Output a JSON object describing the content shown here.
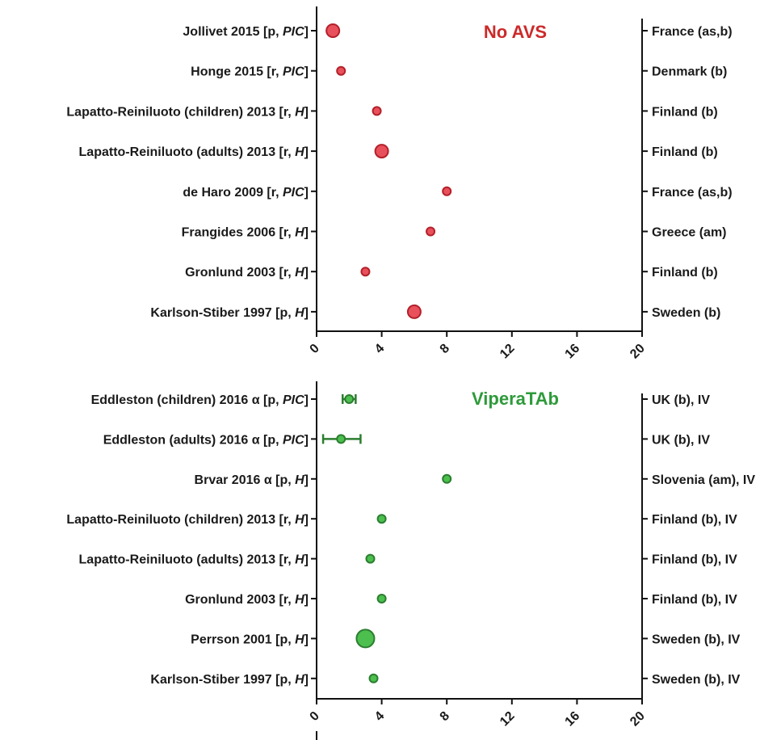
{
  "chart_data": [
    {
      "type": "scatter",
      "title": "No AVS",
      "title_color": "#cc2a2a",
      "point_fill": "#e8505b",
      "point_stroke": "#b3202a",
      "xlim": [
        0,
        20
      ],
      "xticks": [
        0,
        4,
        8,
        12,
        16,
        20
      ],
      "grid": false,
      "studies": [
        {
          "label": "Jollivet 2015 [p, ",
          "label_italic": "PIC",
          "label_end": "]",
          "country": "France (as,b)",
          "value": 1,
          "size": 3
        },
        {
          "label": "Honge 2015 [r, ",
          "label_italic": "PIC",
          "label_end": "]",
          "country": "Denmark (b)",
          "value": 1.5,
          "size": 1
        },
        {
          "label": "Lapatto-Reiniluoto (children) 2013 [r, ",
          "label_italic": "H",
          "label_end": "]",
          "country": "Finland (b)",
          "value": 3.7,
          "size": 1
        },
        {
          "label": "Lapatto-Reiniluoto (adults) 2013 [r, ",
          "label_italic": "H",
          "label_end": "]",
          "country": "Finland (b)",
          "value": 4,
          "size": 3
        },
        {
          "label": "de Haro 2009 [r, ",
          "label_italic": "PIC",
          "label_end": "]",
          "country": "France (as,b)",
          "value": 8,
          "size": 1
        },
        {
          "label": "Frangides 2006 [r, ",
          "label_italic": "H",
          "label_end": "]",
          "country": "Greece (am)",
          "value": 7,
          "size": 1
        },
        {
          "label": "Gronlund 2003 [r, ",
          "label_italic": "H",
          "label_end": "]",
          "country": "Finland (b)",
          "value": 3,
          "size": 1
        },
        {
          "label": "Karlson-Stiber 1997 [p, ",
          "label_italic": "H",
          "label_end": "]",
          "country": "Sweden (b)",
          "value": 6,
          "size": 3
        }
      ]
    },
    {
      "type": "scatter",
      "title": "ViperaTAb",
      "title_color": "#2e9a3a",
      "point_fill": "#4cbf4f",
      "point_stroke": "#2b7d2f",
      "xlim": [
        0,
        20
      ],
      "xticks": [
        0,
        4,
        8,
        12,
        16,
        20
      ],
      "grid": false,
      "studies": [
        {
          "label": "Eddleston (children) 2016 α [p, ",
          "label_italic": "PIC",
          "label_end": "]",
          "country": "UK (b), IV",
          "value": 2,
          "size": 1,
          "ci": [
            1.6,
            2.4
          ]
        },
        {
          "label": "Eddleston (adults) 2016 α [p, ",
          "label_italic": "PIC",
          "label_end": "]",
          "country": "UK (b), IV",
          "value": 1.5,
          "size": 1,
          "ci": [
            0.4,
            2.7
          ]
        },
        {
          "label": "Brvar 2016 α [p, ",
          "label_italic": "H",
          "label_end": "]",
          "country": "Slovenia (am), IV",
          "value": 8,
          "size": 1
        },
        {
          "label": "Lapatto-Reiniluoto (children) 2013 [r, ",
          "label_italic": "H",
          "label_end": "]",
          "country": "Finland (b), IV",
          "value": 4,
          "size": 1
        },
        {
          "label": "Lapatto-Reiniluoto (adults) 2013 [r, ",
          "label_italic": "H",
          "label_end": "]",
          "country": "Finland (b), IV",
          "value": 3.3,
          "size": 1
        },
        {
          "label": "Gronlund 2003 [r, ",
          "label_italic": "H",
          "label_end": "]",
          "country": "Finland (b), IV",
          "value": 4,
          "size": 1
        },
        {
          "label": "Perrson 2001 [p, ",
          "label_italic": "H",
          "label_end": "]",
          "country": "Sweden (b), IV",
          "value": 3,
          "size": 4
        },
        {
          "label": "Karlson-Stiber 1997 [p, ",
          "label_italic": "H",
          "label_end": "]",
          "country": "Sweden (b), IV",
          "value": 3.5,
          "size": 1
        }
      ]
    }
  ]
}
